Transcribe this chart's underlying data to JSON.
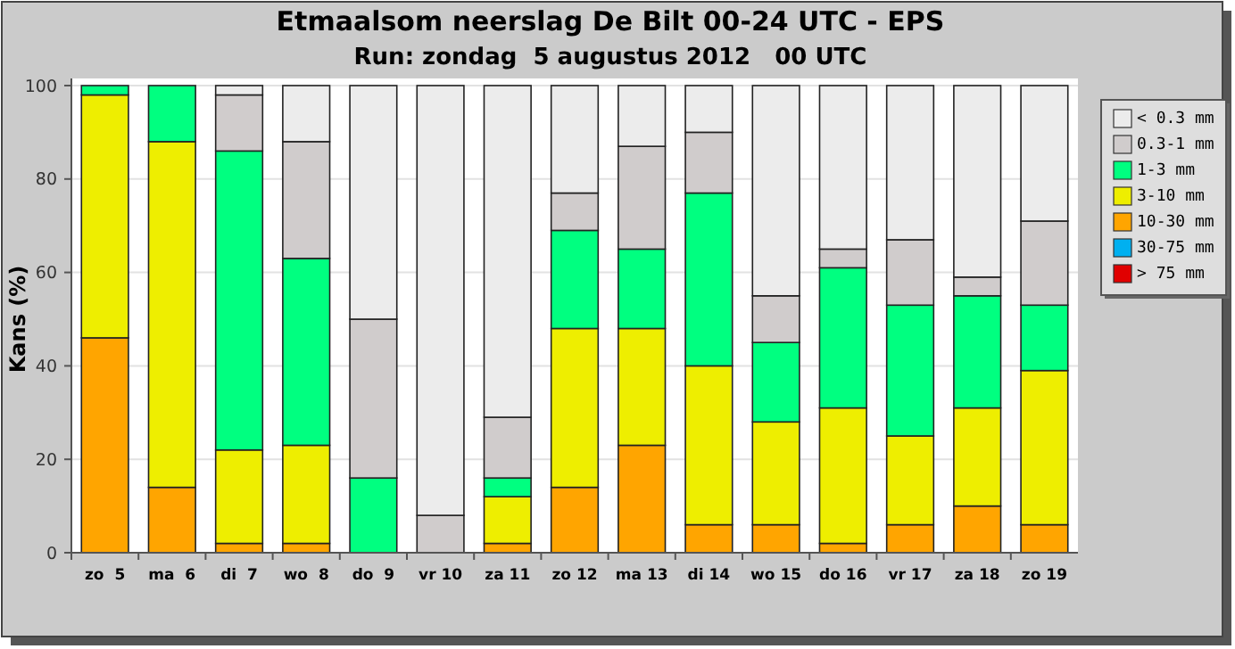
{
  "chart_data": {
    "type": "bar",
    "stacked": true,
    "title": "Etmaalsom neerslag De Bilt 00-24 UTC - EPS",
    "subtitle": "Run: zondag  5 augustus 2012   00 UTC",
    "ylabel": "Kans (%)",
    "categories": [
      "zo  5",
      "ma  6",
      "di  7",
      "wo  8",
      "do  9",
      "vr 10",
      "za 11",
      "zo 12",
      "ma 13",
      "di 14",
      "wo 15",
      "do 16",
      "vr 17",
      "za 18",
      "zo 19"
    ],
    "series": [
      {
        "name": "> 75 mm",
        "color": "#e00000",
        "values": [
          0,
          0,
          0,
          0,
          0,
          0,
          0,
          0,
          0,
          0,
          0,
          0,
          0,
          0,
          0
        ]
      },
      {
        "name": "30-75 mm",
        "color": "#00b0f0",
        "values": [
          0,
          0,
          0,
          0,
          0,
          0,
          0,
          0,
          0,
          0,
          0,
          0,
          0,
          0,
          0
        ]
      },
      {
        "name": "10-30 mm",
        "color": "#ffa500",
        "values": [
          46,
          14,
          2,
          2,
          0,
          0,
          2,
          14,
          23,
          6,
          6,
          2,
          6,
          10,
          6
        ]
      },
      {
        "name": "3-10 mm",
        "color": "#eeee00",
        "values": [
          52,
          74,
          20,
          21,
          0,
          0,
          10,
          34,
          25,
          34,
          22,
          29,
          19,
          21,
          33
        ]
      },
      {
        "name": "1-3 mm",
        "color": "#00ff80",
        "values": [
          2,
          12,
          64,
          40,
          16,
          0,
          4,
          21,
          17,
          37,
          17,
          30,
          28,
          24,
          14
        ]
      },
      {
        "name": "0.3-1 mm",
        "color": "#d0cccc",
        "values": [
          0,
          0,
          12,
          25,
          34,
          8,
          13,
          8,
          22,
          13,
          10,
          4,
          14,
          4,
          18
        ]
      },
      {
        "name": "< 0.3 mm",
        "color": "#ececec",
        "values": [
          0,
          0,
          2,
          12,
          50,
          92,
          71,
          23,
          13,
          10,
          45,
          35,
          33,
          41,
          29
        ]
      }
    ],
    "ylim": [
      0,
      100
    ],
    "yticks": [
      0,
      20,
      40,
      60,
      80,
      100
    ],
    "grid": "y",
    "legend": "right"
  }
}
